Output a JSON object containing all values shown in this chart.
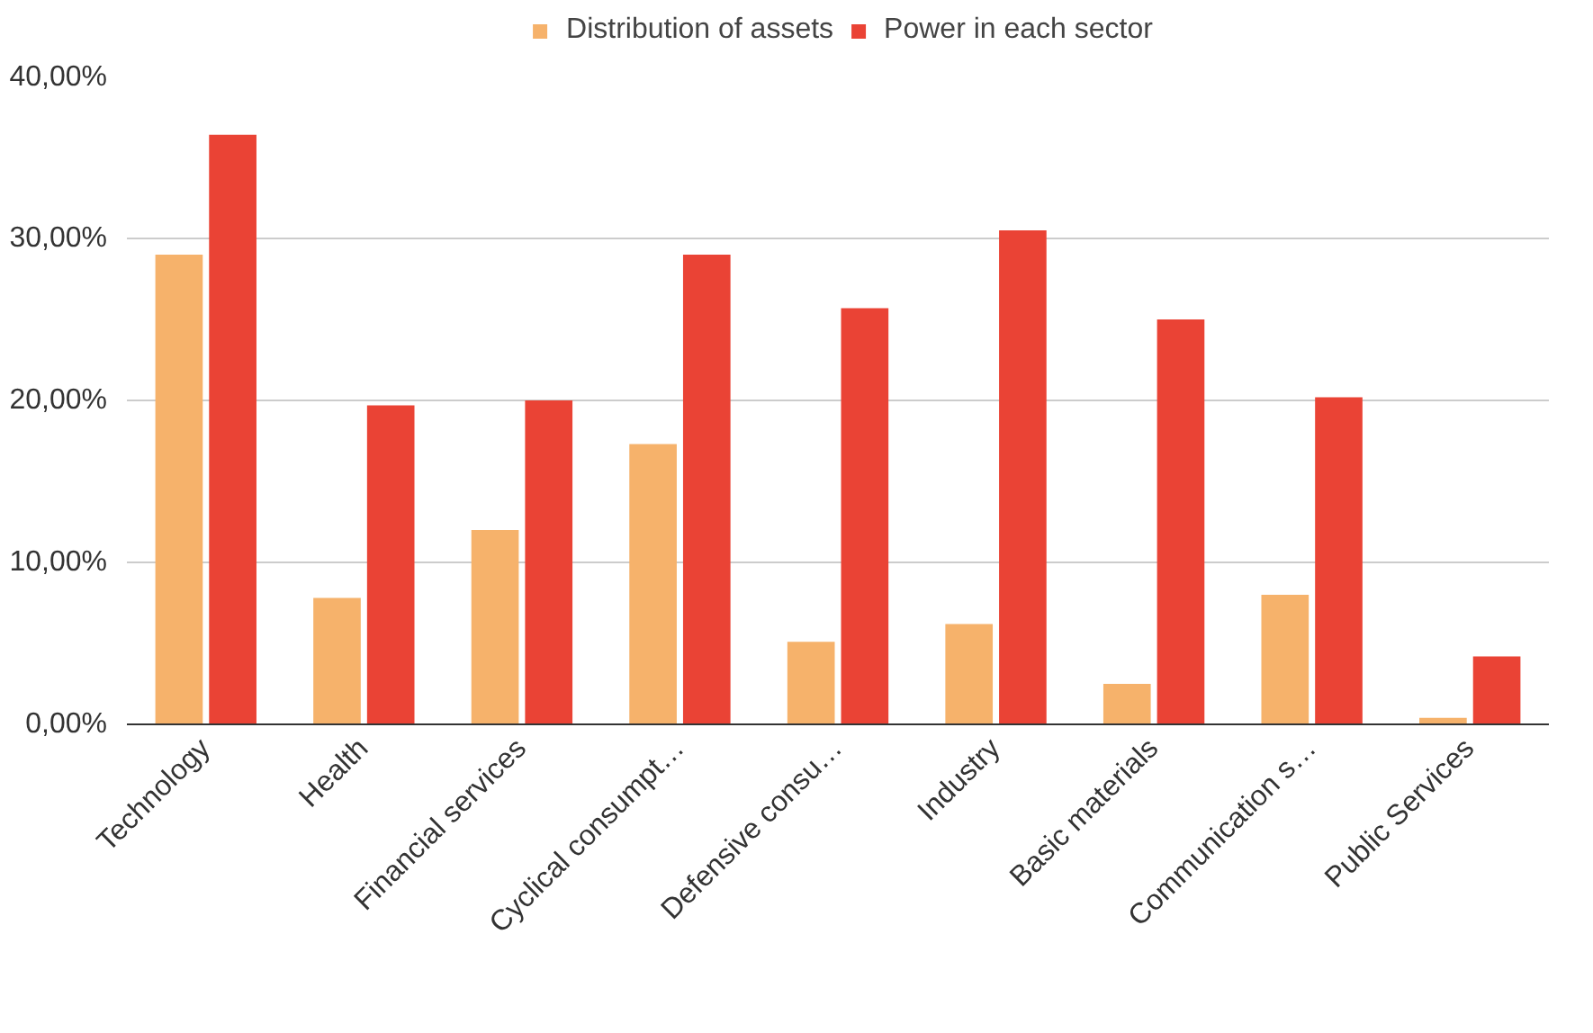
{
  "chart_data": {
    "type": "bar",
    "categories": [
      "Technology",
      "Health",
      "Financial services",
      "Cyclical consumpt…",
      "Defensive consu…",
      "Industry",
      "Basic materials",
      "Communication s…",
      "Public Services"
    ],
    "series": [
      {
        "name": "Distribution of assets",
        "color": "#f6b26b",
        "values": [
          29.0,
          7.8,
          12.0,
          17.3,
          5.1,
          6.2,
          2.5,
          8.0,
          0.4
        ]
      },
      {
        "name": "Power in each sector",
        "color": "#ea4335",
        "values": [
          36.4,
          19.7,
          20.0,
          29.0,
          25.7,
          30.5,
          25.0,
          20.2,
          4.2
        ]
      }
    ],
    "ylim": [
      0,
      40
    ],
    "yticks": [
      {
        "value": 0,
        "label": "0,00%"
      },
      {
        "value": 10,
        "label": "10,00%"
      },
      {
        "value": 20,
        "label": "20,00%"
      },
      {
        "value": 30,
        "label": "30,00%"
      },
      {
        "value": 40,
        "label": "40,00%"
      }
    ],
    "grid": "y",
    "legend": "top"
  }
}
